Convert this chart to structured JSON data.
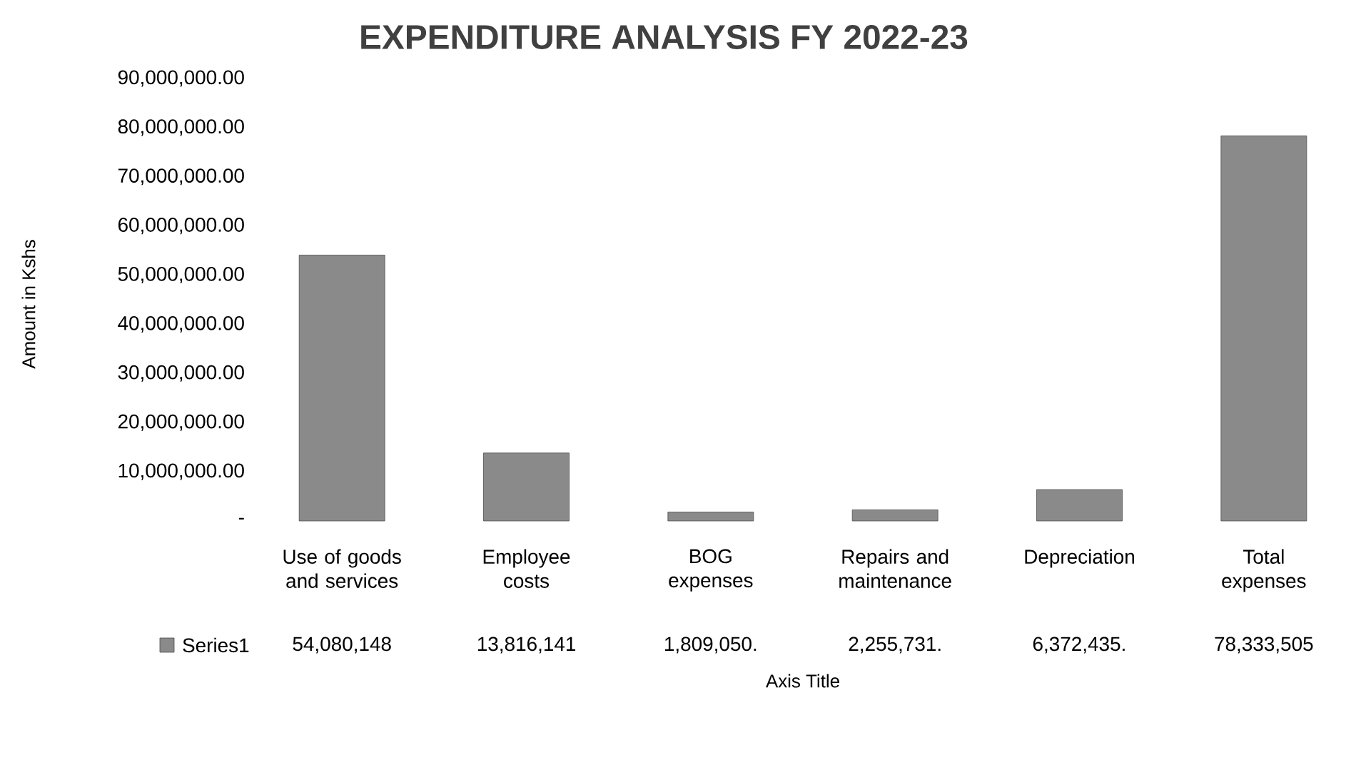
{
  "chart_data": {
    "type": "bar",
    "title": "EXPENDITURE ANALYSIS FY 2022-23",
    "ylabel": "Amount in Kshs",
    "xlabel": "Axis Title",
    "categories": [
      "Use of goods and services",
      "Employee costs",
      "BOG expenses",
      "Repairs and maintenance",
      "Depreciation",
      "Total expenses"
    ],
    "series": [
      {
        "name": "Series1",
        "color": "#8a8a8a",
        "values": [
          54080148,
          13816141,
          1809050,
          2255731,
          6372435,
          78333505
        ],
        "value_labels": [
          "54,080,148",
          "13,816,141",
          "1,809,050.",
          "2,255,731.",
          "6,372,435.",
          "78,333,505"
        ]
      }
    ],
    "ylim": [
      0,
      90000000
    ],
    "yticks": [
      {
        "value": 0,
        "label": "-"
      },
      {
        "value": 10000000,
        "label": "10,000,000.00"
      },
      {
        "value": 20000000,
        "label": "20,000,000.00"
      },
      {
        "value": 30000000,
        "label": "30,000,000.00"
      },
      {
        "value": 40000000,
        "label": "40,000,000.00"
      },
      {
        "value": 50000000,
        "label": "50,000,000.00"
      },
      {
        "value": 60000000,
        "label": "60,000,000.00"
      },
      {
        "value": 70000000,
        "label": "70,000,000.00"
      },
      {
        "value": 80000000,
        "label": "80,000,000.00"
      },
      {
        "value": 90000000,
        "label": "90,000,000.00"
      }
    ],
    "legend": "bottom",
    "grid": false
  }
}
